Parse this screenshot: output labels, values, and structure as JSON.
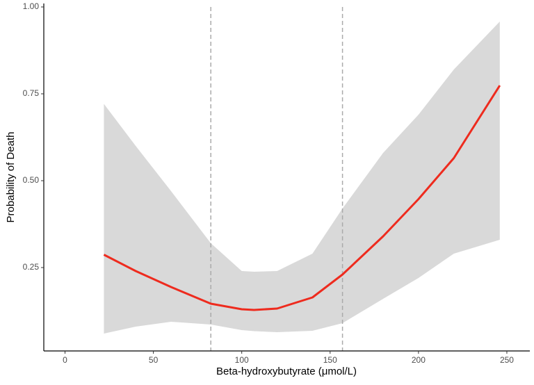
{
  "chart_data": {
    "type": "line",
    "x_label": "Beta-hydroxybutyrate (μmol/L)",
    "y_label": "Probability of Death",
    "x": [
      22,
      40,
      60,
      82.5,
      100,
      107,
      120,
      140,
      157,
      180,
      200,
      220,
      246
    ],
    "values": [
      0.287,
      0.24,
      0.194,
      0.146,
      0.13,
      0.128,
      0.132,
      0.164,
      0.23,
      0.34,
      0.447,
      0.565,
      0.774
    ],
    "upper": [
      0.721,
      0.6,
      0.47,
      0.32,
      0.24,
      0.238,
      0.24,
      0.29,
      0.42,
      0.58,
      0.69,
      0.82,
      0.958
    ],
    "lower": [
      0.06,
      0.08,
      0.094,
      0.086,
      0.07,
      0.067,
      0.064,
      0.068,
      0.09,
      0.16,
      0.22,
      0.29,
      0.33
    ],
    "color": "#ee2b1e",
    "band_color": "#d9d9d9",
    "vlines": [
      82.5,
      157
    ],
    "xlim": [
      -12,
      263
    ],
    "ylim": [
      0.01,
      1.01
    ],
    "xticks": [
      0,
      50,
      100,
      150,
      200,
      250
    ],
    "yticks": [
      0.25,
      {
        "value": 0.5,
        "label": "0.50"
      },
      0.75,
      {
        "value": 1,
        "label": "1.00"
      }
    ],
    "grid": false
  }
}
